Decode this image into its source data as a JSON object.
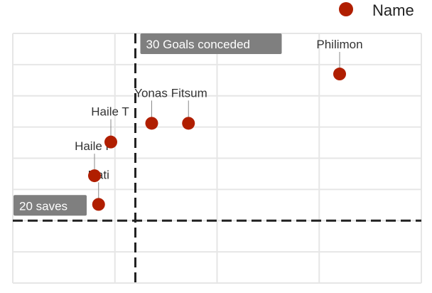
{
  "chart_data": {
    "type": "scatter",
    "title": "",
    "xlabel": "",
    "ylabel": "",
    "xlim": [
      0,
      100
    ],
    "ylim": [
      10,
      50
    ],
    "x_gridlines": [
      0,
      25,
      50,
      75,
      100
    ],
    "y_gridlines": [
      10,
      15,
      20,
      25,
      30,
      35,
      40,
      45,
      50
    ],
    "grid": true,
    "legend": {
      "position": "top-right",
      "label": "Name"
    },
    "point_color": "#B01E00",
    "series": [
      {
        "name": "Name",
        "points": [
          {
            "label": "Philimon",
            "x": 80,
            "y": 43.5
          },
          {
            "label": "Yonas",
            "x": 34,
            "y": 35.6
          },
          {
            "label": "Fitsum",
            "x": 43,
            "y": 35.6
          },
          {
            "label": "Haile T",
            "x": 24,
            "y": 32.6
          },
          {
            "label": "Haile F",
            "x": 20,
            "y": 27.2
          },
          {
            "label": "Nati",
            "x": 21,
            "y": 22.6
          }
        ]
      }
    ],
    "reference_lines": [
      {
        "axis": "x",
        "value": 30,
        "label": "30 Goals conceded"
      },
      {
        "axis": "y",
        "value": 20,
        "label": "20 saves"
      }
    ]
  }
}
